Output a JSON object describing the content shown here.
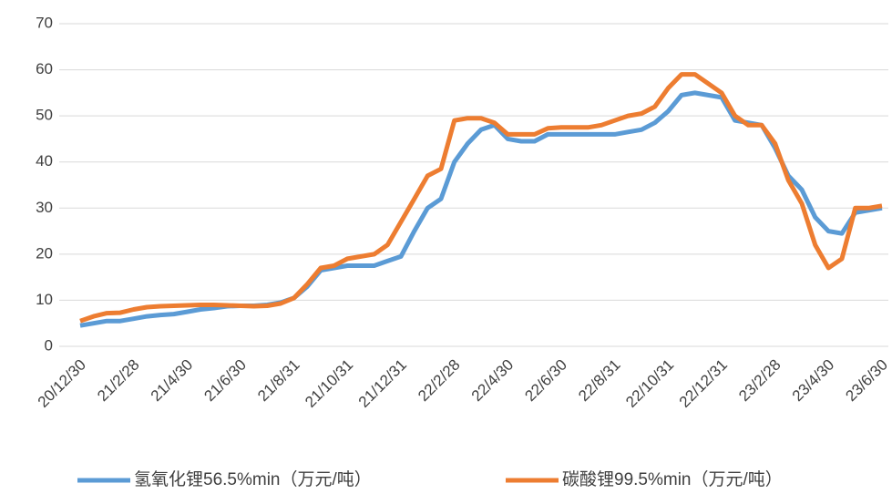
{
  "chart_data": {
    "type": "line",
    "categories": [
      "20/12/30",
      null,
      null,
      null,
      "21/2/28",
      null,
      null,
      null,
      "21/4/30",
      null,
      null,
      null,
      "21/6/30",
      null,
      null,
      null,
      "21/8/31",
      null,
      null,
      null,
      "21/10/31",
      null,
      null,
      null,
      "21/12/31",
      null,
      null,
      null,
      "22/2/28",
      null,
      null,
      null,
      "22/4/30",
      null,
      null,
      null,
      "22/6/30",
      null,
      null,
      null,
      "22/8/31",
      null,
      null,
      null,
      "22/10/31",
      null,
      null,
      null,
      "22/12/31",
      null,
      null,
      null,
      "23/2/28",
      null,
      null,
      null,
      "23/4/30",
      null,
      null,
      null,
      "23/6/30"
    ],
    "series": [
      {
        "name": "氢氧化锂56.5%min（万元/吨）",
        "color": "#5b9bd5",
        "values": [
          4.5,
          5,
          5.5,
          5.5,
          6,
          6.5,
          6.8,
          7,
          7.5,
          8,
          8.3,
          8.7,
          8.8,
          8.8,
          9,
          9.5,
          10.5,
          13,
          16.5,
          17,
          17.5,
          17.5,
          17.5,
          18.5,
          19.5,
          25,
          30,
          32,
          40,
          44,
          47,
          48,
          45,
          44.5,
          44.5,
          46,
          46,
          46,
          46,
          46,
          46,
          46.5,
          47,
          48.5,
          51,
          54.5,
          55,
          54.5,
          54,
          49,
          48.5,
          48,
          43,
          37,
          34,
          28,
          25,
          24.5,
          29,
          29.5,
          30
        ]
      },
      {
        "name": "碳酸锂99.5%min（万元/吨）",
        "color": "#ed7d31",
        "values": [
          5.5,
          6.5,
          7.2,
          7.3,
          8,
          8.5,
          8.7,
          8.8,
          8.9,
          9,
          9,
          8.9,
          8.8,
          8.7,
          8.8,
          9.3,
          10.5,
          13.5,
          17,
          17.5,
          19,
          19.5,
          20,
          22,
          27,
          32,
          37,
          38.5,
          49,
          49.5,
          49.5,
          48.5,
          46,
          46,
          46,
          47.3,
          47.5,
          47.5,
          47.5,
          48,
          49,
          50,
          50.5,
          52,
          56,
          59,
          59,
          57,
          55,
          50,
          48,
          48,
          44,
          36,
          31,
          22,
          17,
          19,
          30,
          30,
          30.5
        ]
      }
    ],
    "ylim": [
      0,
      70
    ],
    "yticks": [
      0,
      10,
      20,
      30,
      40,
      50,
      60,
      70
    ],
    "grid": true,
    "legend": "bottom"
  }
}
